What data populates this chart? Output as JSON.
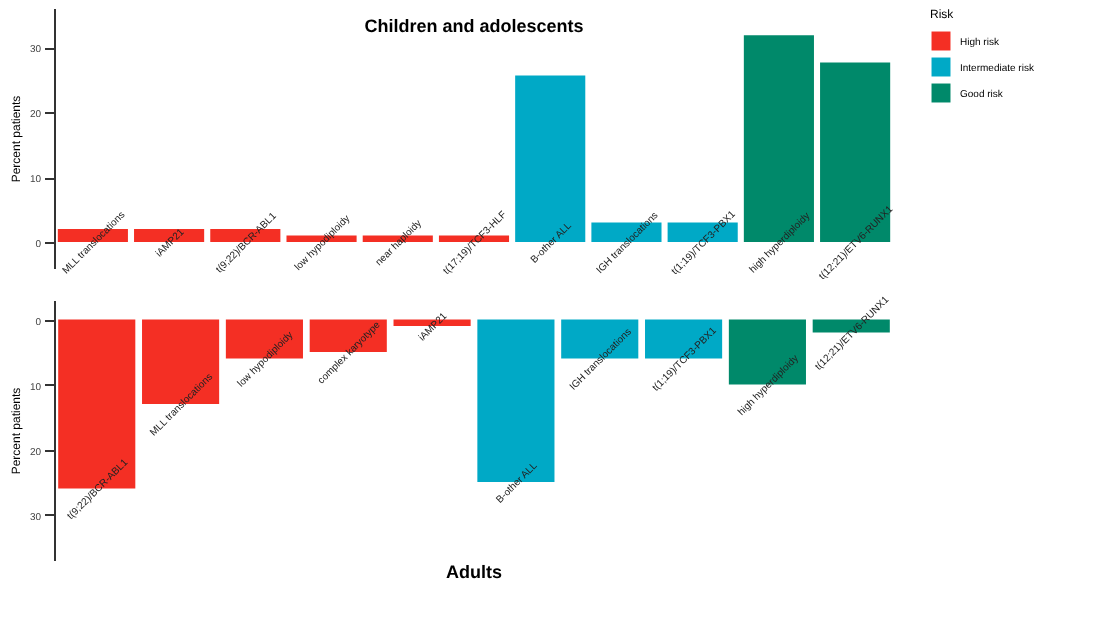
{
  "chart_data": [
    {
      "type": "bar",
      "title": "Children and adolescents",
      "ylabel": "Percent patients",
      "legend_title": "Risk",
      "legend": "right",
      "categories": [
        "MLL translocations",
        "iAMP21",
        "t(9;22)/BCR-ABL1",
        "low hypodiploidy",
        "near haploidy",
        "t(17;19)/TCF3-HLF",
        "B-other ALL",
        "IGH translocations",
        "t(1;19)/TCF3-PBX1",
        "high hyperdiploidy",
        "t(12;21)/ETV6-RUNX1"
      ],
      "series": [
        {
          "name": "High risk",
          "color": "#f42f24",
          "values": [
            2,
            2,
            2,
            1,
            1,
            1,
            null,
            null,
            null,
            null,
            null
          ]
        },
        {
          "name": "Intermediate risk",
          "color": "#00a9c6",
          "values": [
            null,
            null,
            null,
            null,
            null,
            null,
            25.6,
            3,
            3,
            null,
            null
          ]
        },
        {
          "name": "Good risk",
          "color": "#00896a",
          "values": [
            null,
            null,
            null,
            null,
            null,
            null,
            null,
            null,
            null,
            31.8,
            27.6
          ]
        }
      ],
      "ylim": [
        -4,
        36
      ],
      "yticks": [
        0,
        10,
        20,
        30
      ]
    },
    {
      "type": "bar",
      "title": "Adults",
      "ylabel": "Percent patients",
      "categories": [
        "t(9;22)/BCR-ABL1",
        "MLL translocations",
        "low hypodiploidy",
        "complex karyotype",
        "iAMP21",
        "B-other ALL",
        "IGH translocations",
        "t(1;19)/TCF3-PBX1",
        "high hyperdiploidy",
        "t(12;21)/ETV6-RUNX1"
      ],
      "series": [
        {
          "color": "#f42f24",
          "values": [
            26,
            13,
            6,
            5,
            1,
            null,
            null,
            null,
            null,
            null
          ]
        },
        {
          "color": "#00a9c6",
          "values": [
            null,
            null,
            null,
            null,
            null,
            25,
            6,
            6,
            null,
            null
          ]
        },
        {
          "color": "#00896a",
          "values": [
            null,
            null,
            null,
            null,
            null,
            null,
            null,
            null,
            10,
            2
          ]
        }
      ],
      "ylim": [
        37,
        -3
      ],
      "yticks": [
        0,
        10,
        20,
        30
      ]
    }
  ]
}
